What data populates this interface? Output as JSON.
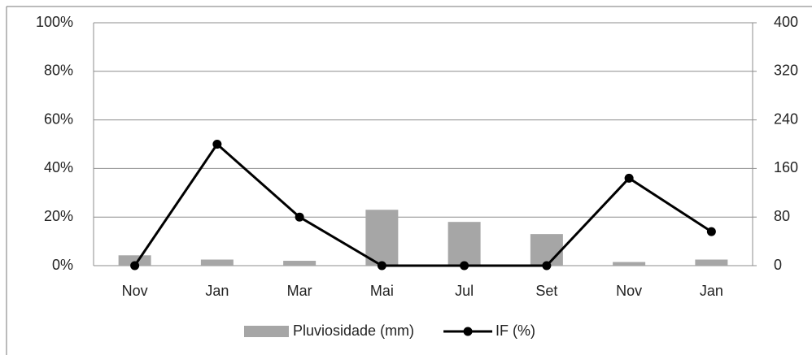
{
  "chart_data": {
    "type": "combo",
    "categories": [
      "Nov",
      "Jan",
      "Mar",
      "Mai",
      "Jul",
      "Set",
      "Nov",
      "Jan"
    ],
    "series": [
      {
        "name": "Pluviosidade (mm)",
        "type": "bar",
        "axis": "y2",
        "color": "#a6a6a6",
        "values": [
          17,
          10,
          8,
          92,
          72,
          52,
          6,
          10
        ]
      },
      {
        "name": "IF (%)",
        "type": "line",
        "color": "#000000",
        "values": [
          0,
          50,
          20,
          0,
          0,
          0,
          36,
          14
        ]
      }
    ],
    "ylim": [
      0,
      100
    ],
    "yticks": [
      {
        "value": 0,
        "label": "0%"
      },
      {
        "value": 20,
        "label": "20%"
      },
      {
        "value": 40,
        "label": "40%"
      },
      {
        "value": 60,
        "label": "60%"
      },
      {
        "value": 80,
        "label": "80%"
      },
      {
        "value": 100,
        "label": "100%"
      }
    ],
    "y2lim": [
      0,
      400
    ],
    "y2ticks": [
      0,
      80,
      160,
      240,
      320,
      400
    ],
    "grid": true,
    "legend": "bottom"
  }
}
